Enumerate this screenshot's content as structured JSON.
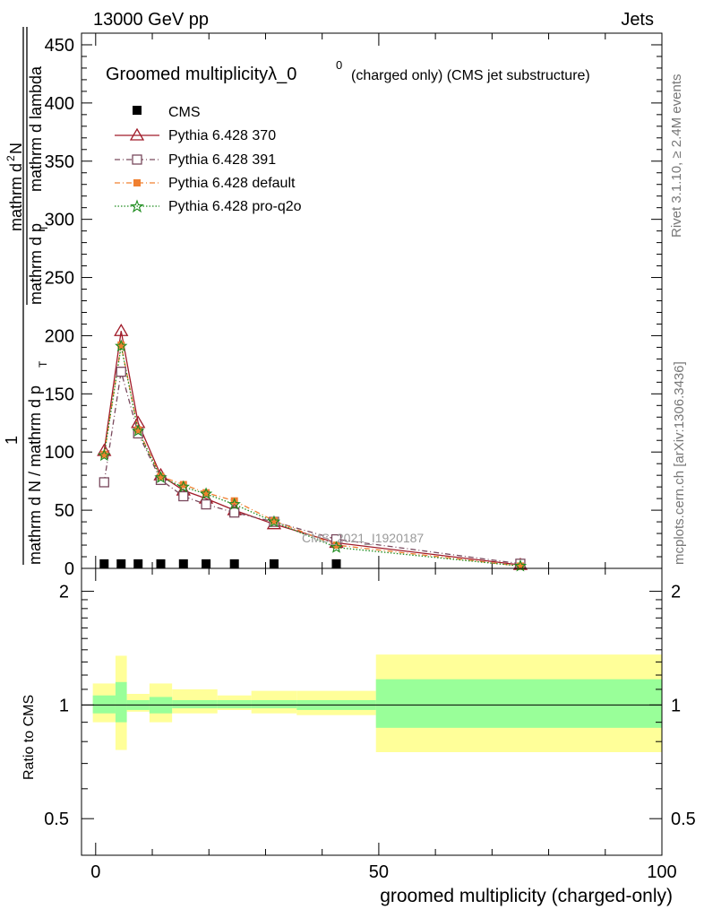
{
  "header": {
    "left": "13000 GeV pp",
    "right": "Jets"
  },
  "side_text": {
    "rivet": "Rivet 3.1.10, ≥ 2.4M events",
    "mcplots": "mcplots.cern.ch [arXiv:1306.3436]"
  },
  "watermark": "CMS_2021_I1920187",
  "colors": {
    "cms": "#000000",
    "p370": "#a11c2a",
    "p391": "#7a4a5e",
    "pdefault": "#f08030",
    "pq2o": "#1e8c1e",
    "band_inner": "#99ff99",
    "band_outer": "#ffff99"
  },
  "chart_data": [
    {
      "type": "line",
      "title": "Groomed multiplicityλ_0",
      "title_sup": "0",
      "title_suffix": "(charged only) (CMS jet substructure)",
      "xlabel": "",
      "ylabel_parts": {
        "frac1_num": "1",
        "frac1_den": "mathrm d N / mathrm d p",
        "frac1_den_sub": "T",
        "frac2_num": "mathrm d",
        "frac2_num_sup": "2",
        "frac2_num_rest": "N",
        "frac2_den": "mathrm d p",
        "frac2_den_sub": "T",
        "frac2_den_rest": "mathrm d lambda"
      },
      "xlim": [
        -2.5,
        100
      ],
      "ylim": [
        0,
        460
      ],
      "yticks": [
        0,
        50,
        100,
        150,
        200,
        250,
        300,
        350,
        400,
        450
      ],
      "legend_position": "top-left",
      "x": [
        1.5,
        4.5,
        7.5,
        11.5,
        15.5,
        19.5,
        24.5,
        31.5,
        42.5,
        75.0
      ],
      "series": [
        {
          "name": "CMS",
          "style": "cms",
          "marker": "square",
          "values": [
            0.1,
            0.1,
            0.1,
            0.1,
            0.1,
            0.1,
            0.1,
            0.1,
            0.1,
            0.05
          ]
        },
        {
          "name": "Pythia 6.428 370",
          "style": "p370",
          "marker": "triangle",
          "values": [
            101,
            204,
            125,
            80,
            67,
            60,
            50,
            38,
            22,
            3
          ]
        },
        {
          "name": "Pythia 6.428 391",
          "style": "p391",
          "marker": "opensquare",
          "values": [
            74,
            169,
            116,
            76,
            62,
            55,
            48,
            40,
            25,
            4
          ]
        },
        {
          "name": "Pythia 6.428 default",
          "style": "pdefault",
          "marker": "filledsquare",
          "values": [
            98,
            192,
            119,
            79,
            72,
            65,
            58,
            41,
            20,
            2
          ]
        },
        {
          "name": "Pythia 6.428 pro-q2o",
          "style": "pq2o",
          "marker": "star",
          "values": [
            97,
            191,
            118,
            78,
            70,
            64,
            55,
            40,
            18,
            2
          ]
        }
      ]
    },
    {
      "type": "area",
      "xlabel": "groomed multiplicity (charged-only)",
      "ylabel": "Ratio to CMS",
      "xlim": [
        -2.5,
        100
      ],
      "ylim": [
        0.4,
        2.3
      ],
      "log_y": true,
      "yticks": [
        0.5,
        1,
        2
      ],
      "xticks": [
        0,
        50,
        100
      ],
      "bins": [
        {
          "lo": -0.5,
          "hi": 3.5,
          "inner": [
            0.95,
            1.06
          ],
          "outer": [
            0.9,
            1.14
          ]
        },
        {
          "lo": 3.5,
          "hi": 5.5,
          "inner": [
            0.9,
            1.15
          ],
          "outer": [
            0.76,
            1.35
          ]
        },
        {
          "lo": 5.5,
          "hi": 9.5,
          "inner": [
            0.97,
            1.03
          ],
          "outer": [
            0.96,
            1.07
          ]
        },
        {
          "lo": 9.5,
          "hi": 13.5,
          "inner": [
            0.95,
            1.05
          ],
          "outer": [
            0.9,
            1.14
          ]
        },
        {
          "lo": 13.5,
          "hi": 21.5,
          "inner": [
            0.98,
            1.03
          ],
          "outer": [
            0.95,
            1.1
          ]
        },
        {
          "lo": 21.5,
          "hi": 27.5,
          "inner": [
            0.98,
            1.03
          ],
          "outer": [
            0.97,
            1.06
          ]
        },
        {
          "lo": 27.5,
          "hi": 35.5,
          "inner": [
            0.98,
            1.03
          ],
          "outer": [
            0.95,
            1.09
          ]
        },
        {
          "lo": 35.5,
          "hi": 49.5,
          "inner": [
            0.97,
            1.03
          ],
          "outer": [
            0.94,
            1.09
          ]
        },
        {
          "lo": 49.5,
          "hi": 100,
          "inner": [
            0.87,
            1.17
          ],
          "outer": [
            0.75,
            1.36
          ]
        }
      ]
    }
  ]
}
